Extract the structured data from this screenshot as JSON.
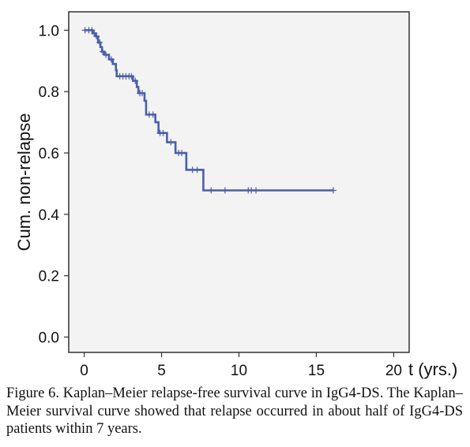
{
  "chart_data": {
    "type": "line",
    "xlabel": "t (yrs.)",
    "ylabel": "Cum. non-relapse",
    "xlim": [
      -1,
      21
    ],
    "ylim": [
      -0.05,
      1.06
    ],
    "x_ticks": [
      0,
      5,
      10,
      15,
      20
    ],
    "y_ticks": [
      0.0,
      0.2,
      0.4,
      0.6,
      0.8,
      1.0
    ],
    "grid": false,
    "legend": "none",
    "colors": {
      "line": "#4a5fa8",
      "plot_bg": "#f3f3f3",
      "frame": "#333333"
    },
    "series": [
      {
        "steps": [
          [
            0,
            1.0
          ],
          [
            0.55,
            0.99
          ],
          [
            0.75,
            0.98
          ],
          [
            0.9,
            0.96
          ],
          [
            1.05,
            0.945
          ],
          [
            1.15,
            0.93
          ],
          [
            1.3,
            0.92
          ],
          [
            1.6,
            0.905
          ],
          [
            1.85,
            0.89
          ],
          [
            2.05,
            0.87
          ],
          [
            2.1,
            0.85
          ],
          [
            3.15,
            0.835
          ],
          [
            3.4,
            0.815
          ],
          [
            3.5,
            0.795
          ],
          [
            3.9,
            0.77
          ],
          [
            4.0,
            0.725
          ],
          [
            4.6,
            0.7
          ],
          [
            4.8,
            0.665
          ],
          [
            5.35,
            0.635
          ],
          [
            5.9,
            0.6
          ],
          [
            6.6,
            0.545
          ],
          [
            7.7,
            0.478
          ],
          [
            16.1,
            0.478
          ]
        ],
        "censored": [
          0.05,
          0.3,
          0.5,
          0.65,
          0.8,
          1.0,
          1.2,
          1.4,
          1.75,
          2.3,
          2.5,
          2.7,
          2.9,
          3.05,
          3.3,
          3.6,
          3.75,
          4.2,
          4.45,
          4.9,
          5.1,
          5.6,
          6.1,
          6.3,
          7.0,
          7.3,
          8.2,
          9.1,
          10.6,
          10.8,
          11.1,
          16.1
        ]
      }
    ]
  },
  "caption": "Figure 6. Kaplan–Meier relapse-free survival curve in IgG4-DS. The Kaplan–Meier survival curve showed that relapse occurred in about half of IgG4-DS patients within 7 years."
}
